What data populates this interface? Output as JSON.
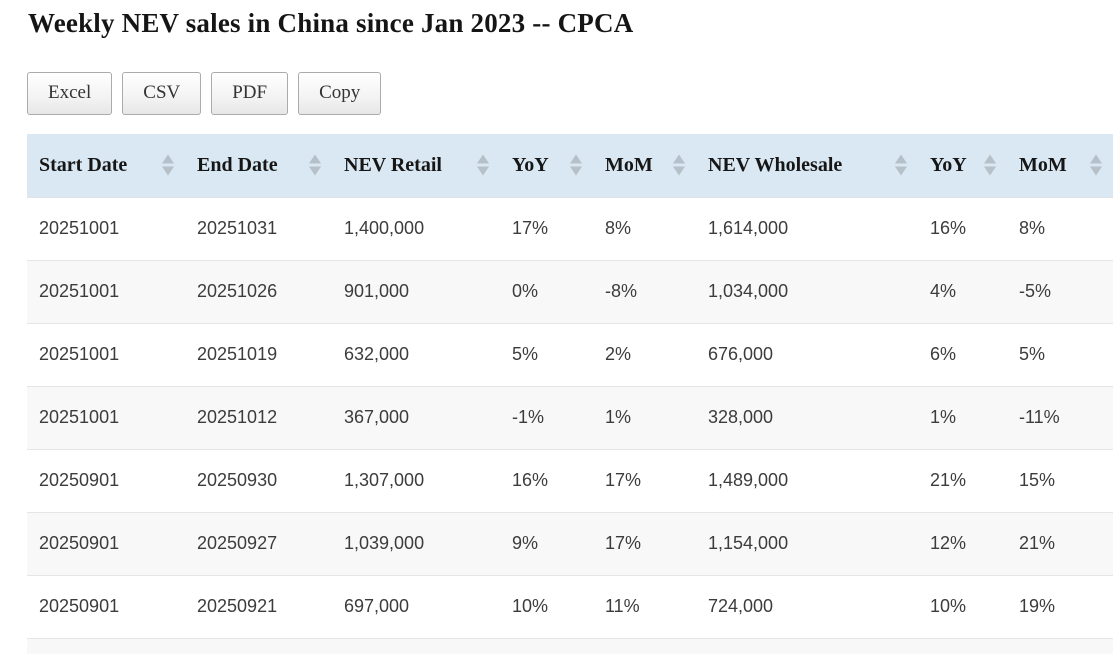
{
  "page": {
    "title": "Weekly NEV sales in China since Jan 2023 -- CPCA"
  },
  "toolbar": {
    "buttons": [
      {
        "label": "Excel"
      },
      {
        "label": "CSV"
      },
      {
        "label": "PDF"
      },
      {
        "label": "Copy"
      }
    ]
  },
  "table": {
    "columns": [
      {
        "label": "Start Date"
      },
      {
        "label": "End Date"
      },
      {
        "label": "NEV Retail"
      },
      {
        "label": "YoY"
      },
      {
        "label": "MoM"
      },
      {
        "label": "NEV Wholesale"
      },
      {
        "label": "YoY"
      },
      {
        "label": "MoM"
      }
    ],
    "rows": [
      [
        "20251001",
        "20251031",
        "1,400,000",
        "17%",
        "8%",
        "1,614,000",
        "16%",
        "8%"
      ],
      [
        "20251001",
        "20251026",
        "901,000",
        "0%",
        "-8%",
        "1,034,000",
        "4%",
        "-5%"
      ],
      [
        "20251001",
        "20251019",
        "632,000",
        "5%",
        "2%",
        "676,000",
        "6%",
        "5%"
      ],
      [
        "20251001",
        "20251012",
        "367,000",
        "-1%",
        "1%",
        "328,000",
        "1%",
        "-11%"
      ],
      [
        "20250901",
        "20250930",
        "1,307,000",
        "16%",
        "17%",
        "1,489,000",
        "21%",
        "15%"
      ],
      [
        "20250901",
        "20250927",
        "1,039,000",
        "9%",
        "17%",
        "1,154,000",
        "12%",
        "21%"
      ],
      [
        "20250901",
        "20250921",
        "697,000",
        "10%",
        "11%",
        "724,000",
        "10%",
        "19%"
      ]
    ]
  },
  "colors": {
    "header_bg": "#d9e8f3",
    "stripe_bg": "#f8f8f8",
    "sort_arrow": "#b6c0c8"
  }
}
